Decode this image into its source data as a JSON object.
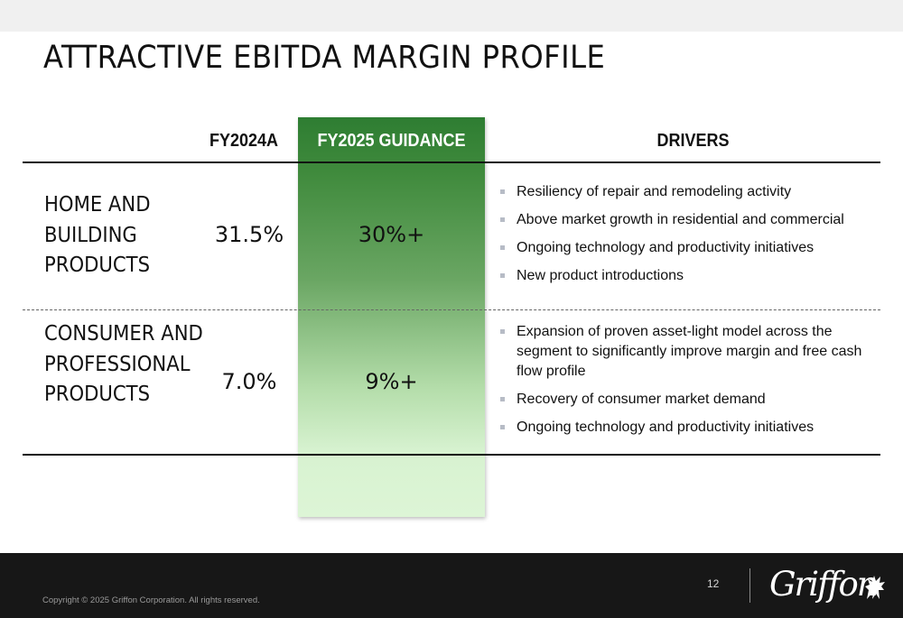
{
  "slide": {
    "title": "ATTRACTIVE EBITDA MARGIN PROFILE",
    "page_number": "12",
    "copyright": "Copyright © 2025 Griffon Corporation. All rights reserved.",
    "logo_text": "Griffon"
  },
  "table": {
    "headers": {
      "fy2024": "FY2024A",
      "fy2025": "FY2025 GUIDANCE",
      "drivers": "DRIVERS"
    },
    "rows": [
      {
        "segment": "HOME AND BUILDING PRODUCTS",
        "fy2024": "31.5%",
        "fy2025": "30%+",
        "drivers": [
          "Resiliency of repair and remodeling activity",
          "Above market growth in residential and commercial",
          "Ongoing technology and productivity initiatives",
          "New product introductions"
        ]
      },
      {
        "segment": "CONSUMER AND PROFESSIONAL PRODUCTS",
        "fy2024": "7.0%",
        "fy2025": "9%+",
        "drivers": [
          "Expansion of proven asset-light model across the segment to significantly improve margin and free cash flow profile",
          "Recovery of consumer market demand",
          "Ongoing technology and productivity initiatives"
        ]
      }
    ]
  },
  "colors": {
    "guidance_top": "#2e7d32",
    "guidance_bottom": "#ddf5d6",
    "footer": "#171717",
    "bullet": "#b7bcc6"
  }
}
